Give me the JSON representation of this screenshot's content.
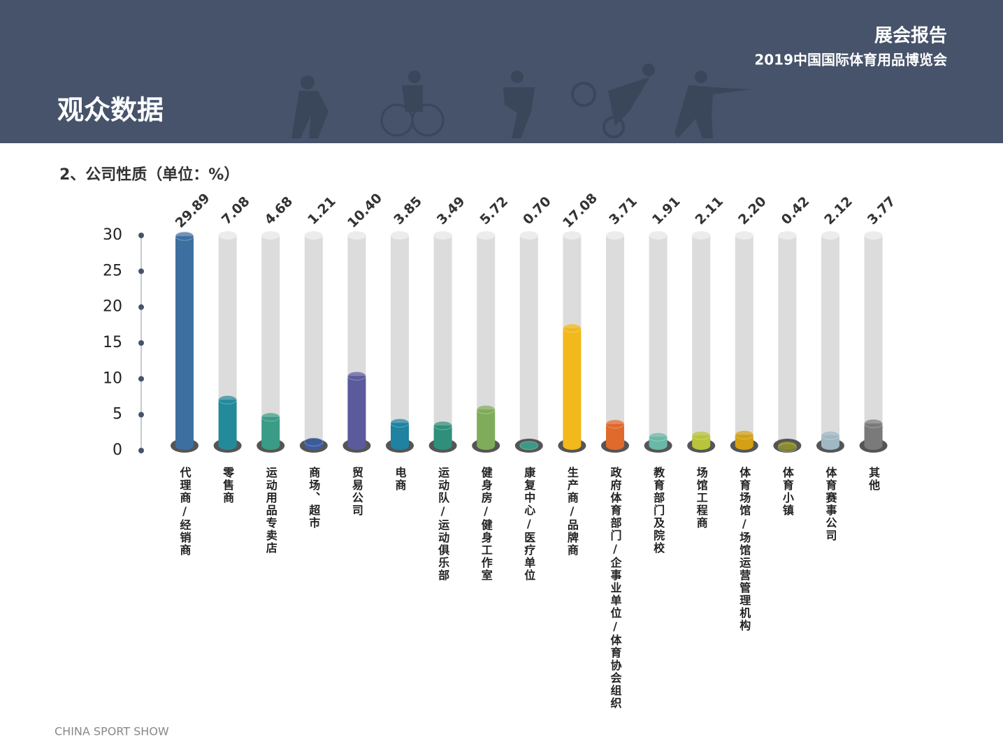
{
  "header": {
    "title": "展会报告",
    "subtitle": "2019中国国际体育用品博览会",
    "section": "观众数据"
  },
  "footer": "CHINA SPORT SHOW",
  "chart_data": {
    "type": "bar",
    "title": "2、公司性质（单位：%）",
    "categories": [
      "代理商/经销商",
      "零售商",
      "运动用品专卖店",
      "商场、超市",
      "贸易公司",
      "电商",
      "运动队/运动俱乐部",
      "健身房/健身工作室",
      "康复中心/医疗单位",
      "生产商/品牌商",
      "政府体育部门/企事业单位/体育协会组织",
      "教育部门及院校",
      "场馆工程商",
      "体育场馆/场馆运营管理机构",
      "体育小镇",
      "体育赛事公司",
      "其他"
    ],
    "values": [
      29.89,
      7.08,
      4.68,
      1.21,
      10.4,
      3.85,
      3.49,
      5.72,
      0.7,
      17.08,
      3.71,
      1.91,
      2.11,
      2.2,
      0.42,
      2.12,
      3.77
    ],
    "value_labels": [
      "29.89",
      "7.08",
      "4.68",
      "1.21",
      "10.40",
      "3.85",
      "3.49",
      "5.72",
      "0.70",
      "17.08",
      "3.71",
      "1.91",
      "2.11",
      "2.20",
      "0.42",
      "2.12",
      "3.77"
    ],
    "colors": [
      "#3d6fa0",
      "#238a9a",
      "#3a9c86",
      "#3b5ca0",
      "#5a5a9c",
      "#1f82a0",
      "#2f8f7a",
      "#7fac5a",
      "#3a9a88",
      "#f2b81c",
      "#e06a2c",
      "#6ab8a8",
      "#b8c43a",
      "#d4a014",
      "#8a8a30",
      "#a0b8c4",
      "#7a7a7a"
    ],
    "ylim": [
      0,
      30
    ],
    "yticks": [
      0,
      5,
      10,
      15,
      20,
      25,
      30
    ]
  }
}
